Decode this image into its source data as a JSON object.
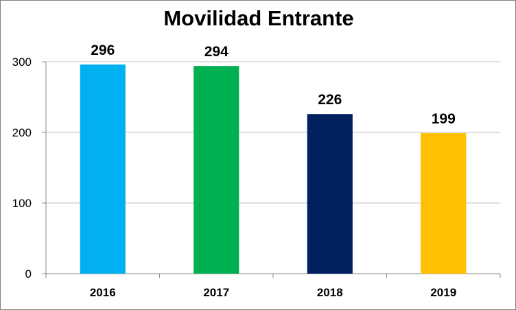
{
  "chart_data": {
    "type": "bar",
    "title": "Movilidad Entrante",
    "categories": [
      "2016",
      "2017",
      "2018",
      "2019"
    ],
    "values": [
      296,
      294,
      226,
      199
    ],
    "data_labels": [
      "296",
      "294",
      "226",
      "199"
    ],
    "bar_colors": [
      "#00b0f0",
      "#00b050",
      "#002060",
      "#ffc000"
    ],
    "ylim": [
      0,
      300
    ],
    "yticks": [
      0,
      100,
      200,
      300
    ],
    "ytick_labels": [
      "0",
      "100",
      "200",
      "300"
    ],
    "grid": true,
    "legend": "none"
  }
}
